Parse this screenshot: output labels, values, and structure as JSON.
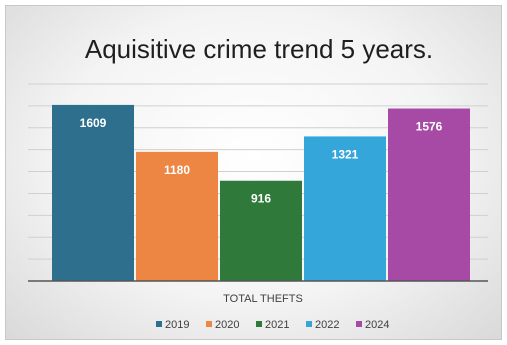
{
  "chart_data": {
    "type": "bar",
    "title": "Aquisitive crime trend 5 years.",
    "categories": [
      "TOTAL THEFTS"
    ],
    "series": [
      {
        "name": "2019",
        "values": [
          1609
        ],
        "color": "#2e6f8e"
      },
      {
        "name": "2020",
        "values": [
          1180
        ],
        "color": "#ed8543"
      },
      {
        "name": "2021",
        "values": [
          916
        ],
        "color": "#2f7a3a"
      },
      {
        "name": "2022",
        "values": [
          1321
        ],
        "color": "#34a6d9"
      },
      {
        "name": "2024",
        "values": [
          1576
        ],
        "color": "#a64aa6"
      }
    ],
    "ylim": [
      0,
      1800
    ],
    "gridlines": true,
    "legend_position": "bottom"
  }
}
